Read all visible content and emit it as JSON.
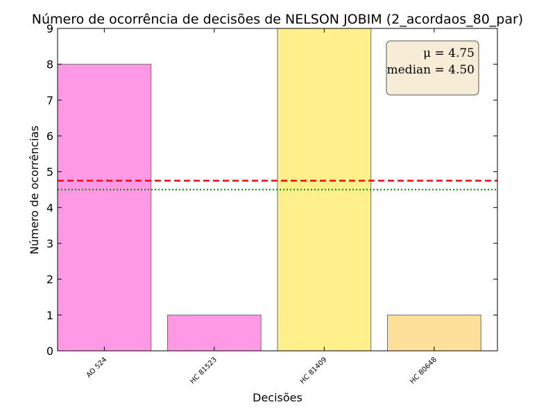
{
  "chart_data": {
    "type": "bar",
    "title": "Número de ocorrência de decisões de NELSON JOBIM (2_acordaos_80_par)",
    "xlabel": "Decisões",
    "ylabel": "Número de ocorrências",
    "categories": [
      "AO 524",
      "HC 81523",
      "HC 81409",
      "HC 80648"
    ],
    "values": [
      8,
      1,
      9,
      1
    ],
    "bar_colors": [
      "#ff99e6",
      "#ff99e6",
      "#fff08c",
      "#ffe099"
    ],
    "ylim": [
      0,
      9
    ],
    "yticks": [
      "0",
      "1",
      "2",
      "3",
      "4",
      "5",
      "6",
      "7",
      "8",
      "9"
    ],
    "mean": 4.75,
    "median": 4.5,
    "mean_line_color": "#ff0000",
    "median_line_color": "#008000",
    "annotation": {
      "mean_text": "μ = 4.75",
      "median_text": "median = 4.50",
      "placement": "top-right",
      "box_color": "#f7ecd6"
    },
    "grid": false
  }
}
